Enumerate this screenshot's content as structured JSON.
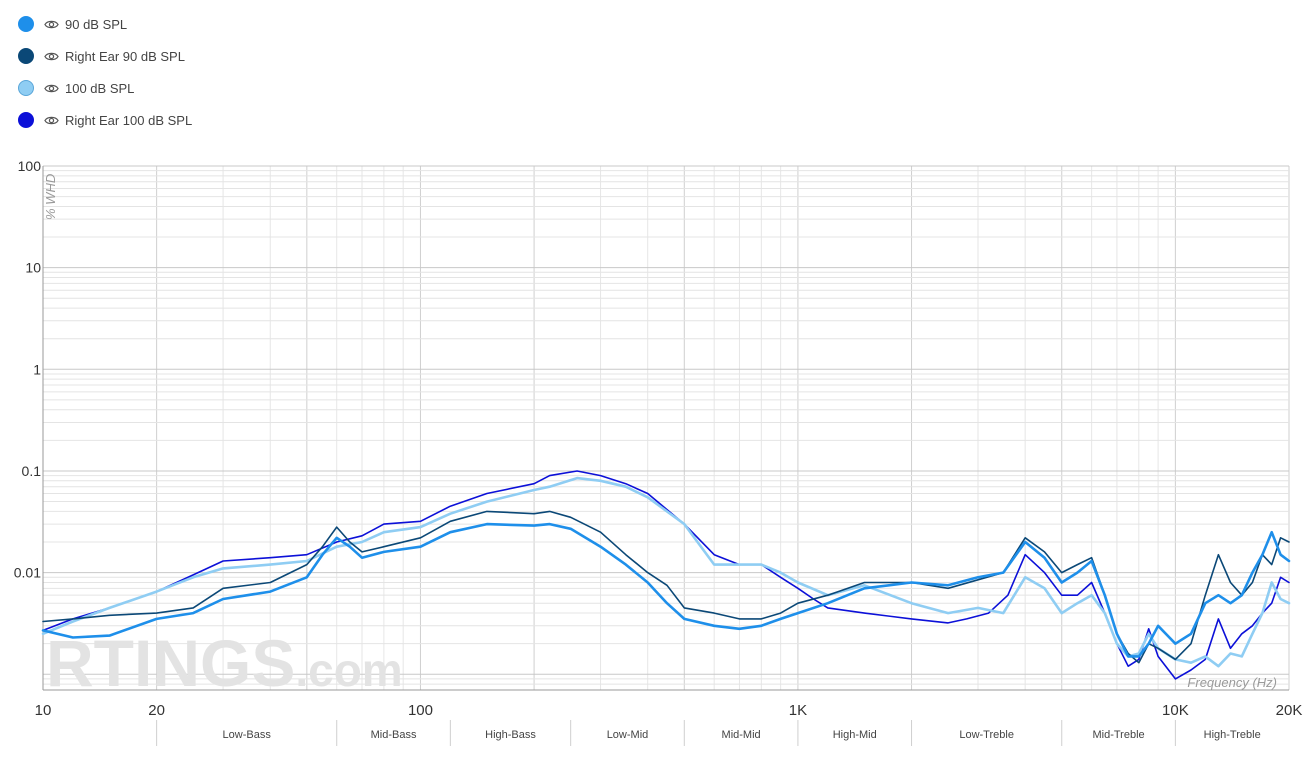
{
  "legend": [
    {
      "label": "90 dB SPL",
      "color": "#1e8fea",
      "border": "#1e8fea"
    },
    {
      "label": "Right Ear 90 dB SPL",
      "color": "#0b4877",
      "border": "#0b4877"
    },
    {
      "label": "100 dB SPL",
      "color": "#8fcdf3",
      "border": "#5aa6d9"
    },
    {
      "label": "Right Ear 100 dB SPL",
      "color": "#0c10d8",
      "border": "#0c10d8"
    }
  ],
  "watermark": {
    "brand": "RTINGS",
    "suffix": ".com"
  },
  "chart_data": {
    "type": "line",
    "xlabel": "Frequency (Hz)",
    "ylabel": "% WHD",
    "xscale": "log",
    "yscale": "log",
    "xlim": [
      10,
      20000
    ],
    "ylim": [
      0.0007,
      100
    ],
    "x_ticks": [
      {
        "v": 10,
        "l": "10"
      },
      {
        "v": 20,
        "l": "20"
      },
      {
        "v": 100,
        "l": "100"
      },
      {
        "v": 1000,
        "l": "1K"
      },
      {
        "v": 10000,
        "l": "10K"
      },
      {
        "v": 20000,
        "l": "20K"
      }
    ],
    "y_ticks": [
      {
        "v": 100,
        "l": "100"
      },
      {
        "v": 10,
        "l": "10"
      },
      {
        "v": 1,
        "l": "1"
      },
      {
        "v": 0.1,
        "l": "0.1"
      },
      {
        "v": 0.01,
        "l": "0.01"
      }
    ],
    "bands": [
      {
        "name": "Low-Bass",
        "from": 20,
        "to": 60
      },
      {
        "name": "Mid-Bass",
        "from": 60,
        "to": 120
      },
      {
        "name": "High-Bass",
        "from": 120,
        "to": 250
      },
      {
        "name": "Low-Mid",
        "from": 250,
        "to": 500
      },
      {
        "name": "Mid-Mid",
        "from": 500,
        "to": 1000
      },
      {
        "name": "High-Mid",
        "from": 1000,
        "to": 2000
      },
      {
        "name": "Low-Treble",
        "from": 2000,
        "to": 5000
      },
      {
        "name": "Mid-Treble",
        "from": 5000,
        "to": 10000
      },
      {
        "name": "High-Treble",
        "from": 10000,
        "to": 20000
      }
    ],
    "grid": true,
    "legend_position": "top-left",
    "series": [
      {
        "name": "Right Ear 100 dB SPL",
        "color": "#0c10d8",
        "width": 1.6,
        "points": [
          [
            10,
            0.0027
          ],
          [
            12,
            0.0035
          ],
          [
            15,
            0.0045
          ],
          [
            20,
            0.0065
          ],
          [
            25,
            0.0095
          ],
          [
            30,
            0.013
          ],
          [
            40,
            0.014
          ],
          [
            50,
            0.015
          ],
          [
            60,
            0.02
          ],
          [
            70,
            0.023
          ],
          [
            80,
            0.03
          ],
          [
            100,
            0.032
          ],
          [
            120,
            0.045
          ],
          [
            150,
            0.06
          ],
          [
            200,
            0.075
          ],
          [
            220,
            0.09
          ],
          [
            260,
            0.1
          ],
          [
            300,
            0.09
          ],
          [
            350,
            0.075
          ],
          [
            400,
            0.06
          ],
          [
            500,
            0.03
          ],
          [
            600,
            0.015
          ],
          [
            700,
            0.012
          ],
          [
            800,
            0.012
          ],
          [
            900,
            0.009
          ],
          [
            1000,
            0.007
          ],
          [
            1100,
            0.0055
          ],
          [
            1200,
            0.0045
          ],
          [
            1500,
            0.004
          ],
          [
            2000,
            0.0035
          ],
          [
            2500,
            0.0032
          ],
          [
            2800,
            0.0035
          ],
          [
            3200,
            0.004
          ],
          [
            3600,
            0.006
          ],
          [
            4000,
            0.015
          ],
          [
            4500,
            0.01
          ],
          [
            5000,
            0.006
          ],
          [
            5500,
            0.006
          ],
          [
            6000,
            0.008
          ],
          [
            6500,
            0.004
          ],
          [
            7000,
            0.002
          ],
          [
            7500,
            0.0012
          ],
          [
            8000,
            0.0014
          ],
          [
            8500,
            0.0028
          ],
          [
            9000,
            0.0015
          ],
          [
            10000,
            0.0009
          ],
          [
            11000,
            0.0011
          ],
          [
            12000,
            0.0014
          ],
          [
            13000,
            0.0035
          ],
          [
            14000,
            0.0018
          ],
          [
            15000,
            0.0025
          ],
          [
            16000,
            0.003
          ],
          [
            17000,
            0.004
          ],
          [
            18000,
            0.005
          ],
          [
            19000,
            0.009
          ],
          [
            20000,
            0.008
          ]
        ]
      },
      {
        "name": "100 dB SPL",
        "color": "#8fcdf3",
        "width": 2.6,
        "points": [
          [
            10,
            0.0025
          ],
          [
            12,
            0.0033
          ],
          [
            15,
            0.0045
          ],
          [
            20,
            0.0065
          ],
          [
            25,
            0.009
          ],
          [
            30,
            0.011
          ],
          [
            40,
            0.012
          ],
          [
            50,
            0.013
          ],
          [
            60,
            0.018
          ],
          [
            70,
            0.02
          ],
          [
            80,
            0.025
          ],
          [
            100,
            0.028
          ],
          [
            120,
            0.038
          ],
          [
            150,
            0.05
          ],
          [
            200,
            0.065
          ],
          [
            220,
            0.07
          ],
          [
            260,
            0.085
          ],
          [
            300,
            0.08
          ],
          [
            350,
            0.07
          ],
          [
            400,
            0.055
          ],
          [
            500,
            0.03
          ],
          [
            600,
            0.012
          ],
          [
            700,
            0.012
          ],
          [
            800,
            0.012
          ],
          [
            900,
            0.01
          ],
          [
            1000,
            0.008
          ],
          [
            1200,
            0.006
          ],
          [
            1500,
            0.0075
          ],
          [
            2000,
            0.005
          ],
          [
            2500,
            0.004
          ],
          [
            3000,
            0.0045
          ],
          [
            3500,
            0.004
          ],
          [
            4000,
            0.009
          ],
          [
            4500,
            0.007
          ],
          [
            5000,
            0.004
          ],
          [
            5500,
            0.005
          ],
          [
            6000,
            0.006
          ],
          [
            6500,
            0.004
          ],
          [
            7000,
            0.002
          ],
          [
            7500,
            0.0015
          ],
          [
            8000,
            0.0016
          ],
          [
            8500,
            0.0025
          ],
          [
            9000,
            0.0018
          ],
          [
            10000,
            0.0014
          ],
          [
            11000,
            0.0013
          ],
          [
            12000,
            0.0015
          ],
          [
            13000,
            0.0012
          ],
          [
            14000,
            0.0016
          ],
          [
            15000,
            0.0015
          ],
          [
            16000,
            0.0025
          ],
          [
            17000,
            0.004
          ],
          [
            18000,
            0.008
          ],
          [
            19000,
            0.0055
          ],
          [
            20000,
            0.005
          ]
        ]
      },
      {
        "name": "Right Ear 90 dB SPL",
        "color": "#0b4877",
        "width": 1.6,
        "points": [
          [
            10,
            0.0033
          ],
          [
            12,
            0.0035
          ],
          [
            15,
            0.0038
          ],
          [
            20,
            0.004
          ],
          [
            25,
            0.0045
          ],
          [
            30,
            0.007
          ],
          [
            40,
            0.008
          ],
          [
            50,
            0.012
          ],
          [
            55,
            0.018
          ],
          [
            60,
            0.028
          ],
          [
            65,
            0.02
          ],
          [
            70,
            0.016
          ],
          [
            80,
            0.018
          ],
          [
            100,
            0.022
          ],
          [
            120,
            0.032
          ],
          [
            150,
            0.04
          ],
          [
            200,
            0.038
          ],
          [
            220,
            0.04
          ],
          [
            250,
            0.035
          ],
          [
            300,
            0.025
          ],
          [
            350,
            0.015
          ],
          [
            400,
            0.01
          ],
          [
            450,
            0.0075
          ],
          [
            500,
            0.0045
          ],
          [
            600,
            0.004
          ],
          [
            700,
            0.0035
          ],
          [
            800,
            0.0035
          ],
          [
            900,
            0.004
          ],
          [
            1000,
            0.005
          ],
          [
            1200,
            0.006
          ],
          [
            1500,
            0.008
          ],
          [
            2000,
            0.008
          ],
          [
            2500,
            0.007
          ],
          [
            3000,
            0.0085
          ],
          [
            3500,
            0.01
          ],
          [
            4000,
            0.022
          ],
          [
            4500,
            0.016
          ],
          [
            5000,
            0.01
          ],
          [
            5500,
            0.012
          ],
          [
            6000,
            0.014
          ],
          [
            6500,
            0.006
          ],
          [
            7000,
            0.0025
          ],
          [
            7500,
            0.0016
          ],
          [
            8000,
            0.0013
          ],
          [
            8500,
            0.002
          ],
          [
            9000,
            0.0018
          ],
          [
            10000,
            0.0014
          ],
          [
            11000,
            0.002
          ],
          [
            12000,
            0.006
          ],
          [
            13000,
            0.015
          ],
          [
            14000,
            0.008
          ],
          [
            15000,
            0.006
          ],
          [
            16000,
            0.008
          ],
          [
            17000,
            0.015
          ],
          [
            18000,
            0.012
          ],
          [
            19000,
            0.022
          ],
          [
            20000,
            0.02
          ]
        ]
      },
      {
        "name": "90 dB SPL",
        "color": "#1e8fea",
        "width": 2.6,
        "points": [
          [
            10,
            0.0027
          ],
          [
            12,
            0.0023
          ],
          [
            15,
            0.0024
          ],
          [
            20,
            0.0035
          ],
          [
            25,
            0.004
          ],
          [
            30,
            0.0055
          ],
          [
            40,
            0.0065
          ],
          [
            50,
            0.009
          ],
          [
            55,
            0.015
          ],
          [
            60,
            0.022
          ],
          [
            65,
            0.018
          ],
          [
            70,
            0.014
          ],
          [
            80,
            0.016
          ],
          [
            100,
            0.018
          ],
          [
            120,
            0.025
          ],
          [
            150,
            0.03
          ],
          [
            200,
            0.029
          ],
          [
            220,
            0.03
          ],
          [
            250,
            0.027
          ],
          [
            300,
            0.018
          ],
          [
            350,
            0.012
          ],
          [
            400,
            0.008
          ],
          [
            450,
            0.005
          ],
          [
            500,
            0.0035
          ],
          [
            600,
            0.003
          ],
          [
            700,
            0.0028
          ],
          [
            800,
            0.003
          ],
          [
            900,
            0.0035
          ],
          [
            1000,
            0.004
          ],
          [
            1200,
            0.005
          ],
          [
            1500,
            0.007
          ],
          [
            2000,
            0.008
          ],
          [
            2500,
            0.0075
          ],
          [
            3000,
            0.009
          ],
          [
            3500,
            0.01
          ],
          [
            4000,
            0.02
          ],
          [
            4500,
            0.014
          ],
          [
            5000,
            0.008
          ],
          [
            5500,
            0.01
          ],
          [
            6000,
            0.013
          ],
          [
            6500,
            0.006
          ],
          [
            7000,
            0.0025
          ],
          [
            7500,
            0.0015
          ],
          [
            8000,
            0.0015
          ],
          [
            8500,
            0.002
          ],
          [
            9000,
            0.003
          ],
          [
            10000,
            0.002
          ],
          [
            11000,
            0.0025
          ],
          [
            12000,
            0.005
          ],
          [
            13000,
            0.006
          ],
          [
            14000,
            0.005
          ],
          [
            15000,
            0.006
          ],
          [
            16000,
            0.01
          ],
          [
            17000,
            0.015
          ],
          [
            18000,
            0.025
          ],
          [
            19000,
            0.015
          ],
          [
            20000,
            0.013
          ]
        ]
      }
    ]
  }
}
